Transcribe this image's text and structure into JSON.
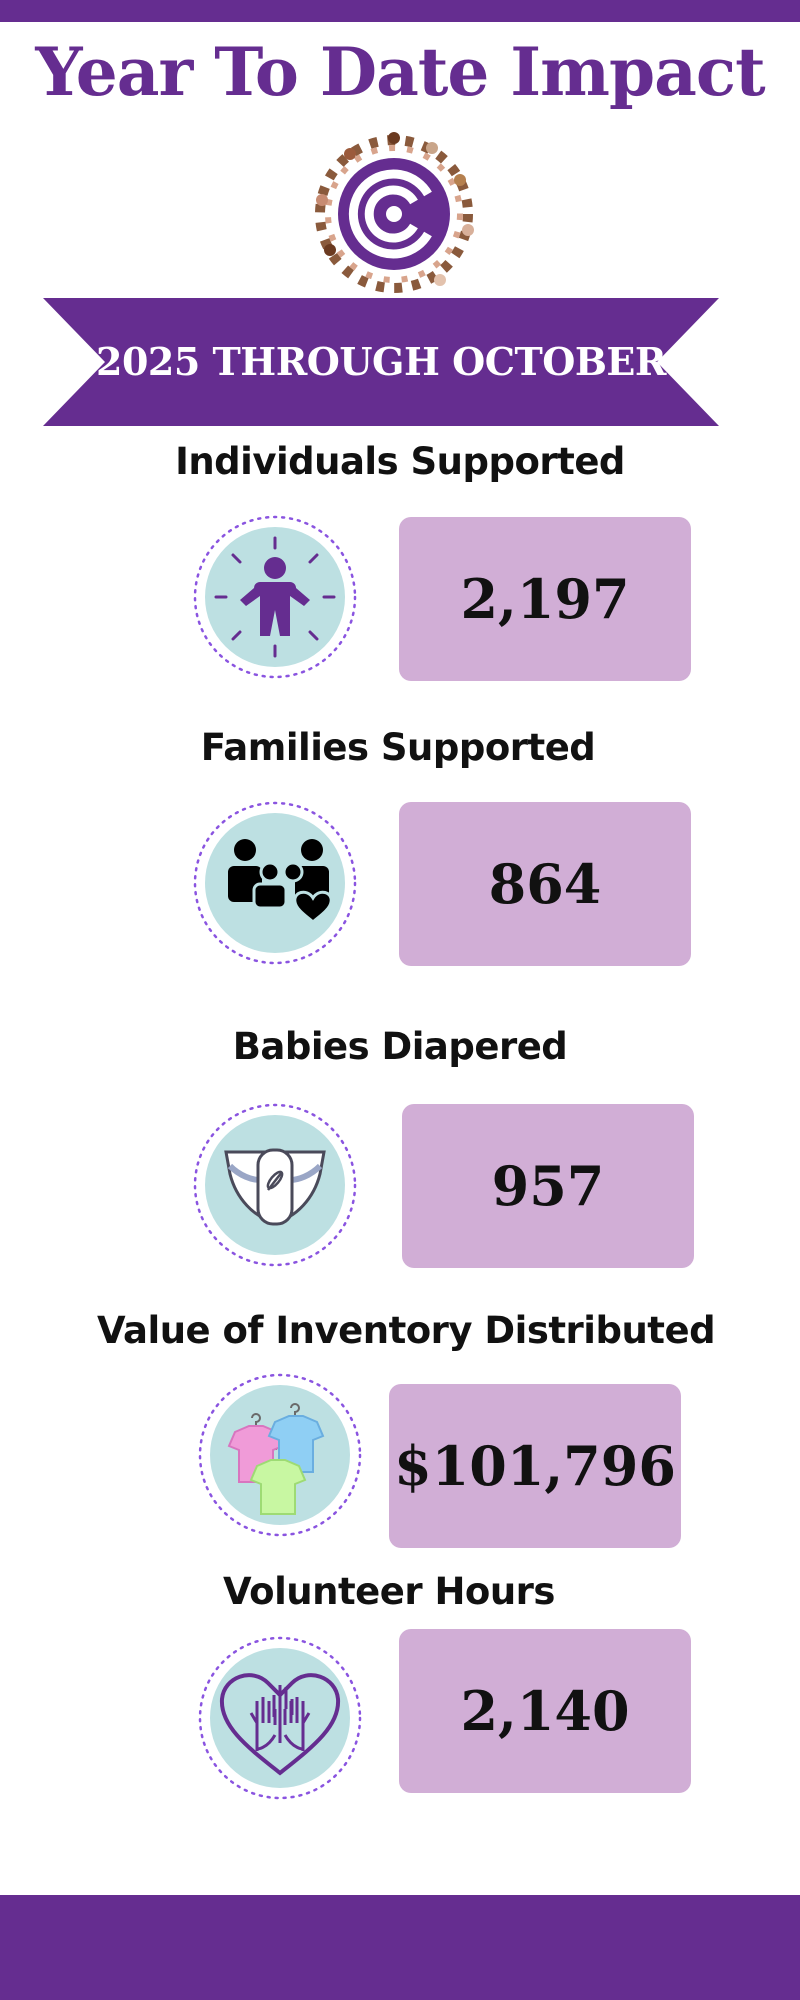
{
  "title": "Year To Date Impact",
  "banner": "2025 THROUGH OCTOBER",
  "colors": {
    "brand_purple": "#652d90",
    "box_fill": "#d1aed6",
    "icon_circle": "#bde0e2"
  },
  "metrics": [
    {
      "label": "Individuals Supported",
      "value": "2,197",
      "icon": "child-icon"
    },
    {
      "label": "Families Supported",
      "value": "864",
      "icon": "family-icon"
    },
    {
      "label": "Babies Diapered",
      "value": "957",
      "icon": "diaper-icon"
    },
    {
      "label": "Value of Inventory Distributed",
      "value": "$101,796",
      "icon": "clothing-icon"
    },
    {
      "label": "Volunteer Hours",
      "value": "2,140",
      "icon": "volunteer-hands-icon"
    }
  ]
}
